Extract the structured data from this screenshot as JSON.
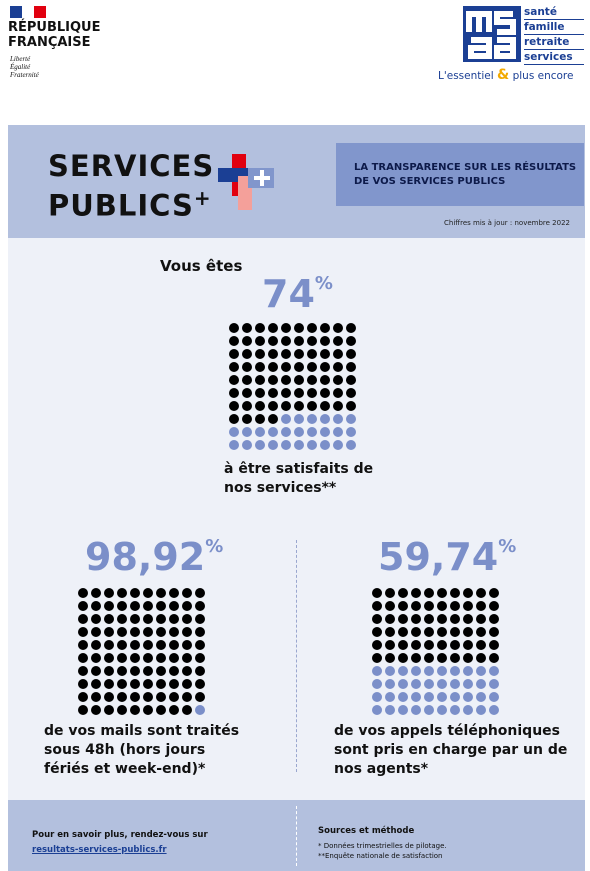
{
  "header": {
    "republique": {
      "name_line1": "RÉPUBLIQUE",
      "name_line2": "FRANÇAISE",
      "motto": [
        "Liberté",
        "Égalité",
        "Fraternité"
      ]
    },
    "msa": {
      "words": [
        "santé",
        "famille",
        "retraite",
        "services"
      ],
      "tagline_start": "L'essentiel",
      "tagline_amp": "&",
      "tagline_end": "plus encore"
    }
  },
  "banner": {
    "logo_line1": "SERVICES",
    "logo_line2": "PUBLICS",
    "logo_plus": "+",
    "headline": "LA TRANSPARENCE SUR LES RÉSULTATS DE VOS SERVICES PUBLICS",
    "update": "Chiffres mis à jour : novembre 2022"
  },
  "stats": [
    {
      "intro": "Vous êtes",
      "value": 74,
      "value_label": "74",
      "unit": "%",
      "caption": "à être satisfaits de nos services**"
    },
    {
      "value": 98.92,
      "value_label": "98,92",
      "unit": "%",
      "caption": "de vos mails sont traités sous 48h (hors jours fériés et week-end)*"
    },
    {
      "value": 59.74,
      "value_label": "59,74",
      "unit": "%",
      "caption": "de vos appels téléphoniques sont pris en charge par un de nos agents*"
    }
  ],
  "footer": {
    "more": "Pour en savoir plus, rendez-vous sur",
    "link": "resultats-services-publics.fr",
    "sources_title": "Sources et méthode",
    "notes": [
      "* Données trimestrielles de pilotage.",
      "**Enquête nationale de satisfaction"
    ]
  }
}
